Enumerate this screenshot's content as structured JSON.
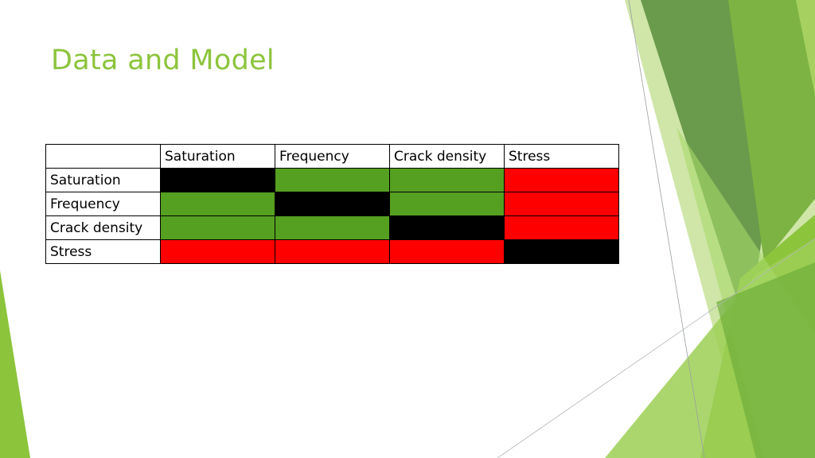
{
  "slide": {
    "title": "Data and Model"
  },
  "table": {
    "columns": [
      "Saturation",
      "Frequency",
      "Crack density",
      "Stress"
    ],
    "rows": [
      {
        "label": "Saturation",
        "cells": [
          "black",
          "green",
          "green",
          "red"
        ]
      },
      {
        "label": "Frequency",
        "cells": [
          "green",
          "black",
          "green",
          "red"
        ]
      },
      {
        "label": "Crack density",
        "cells": [
          "green",
          "green",
          "black",
          "red"
        ]
      },
      {
        "label": "Stress",
        "cells": [
          "red",
          "red",
          "red",
          "black"
        ]
      }
    ]
  },
  "colors": {
    "title": "#8cc43c",
    "black": "#000000",
    "green": "#55a020",
    "red": "#ff0000"
  }
}
